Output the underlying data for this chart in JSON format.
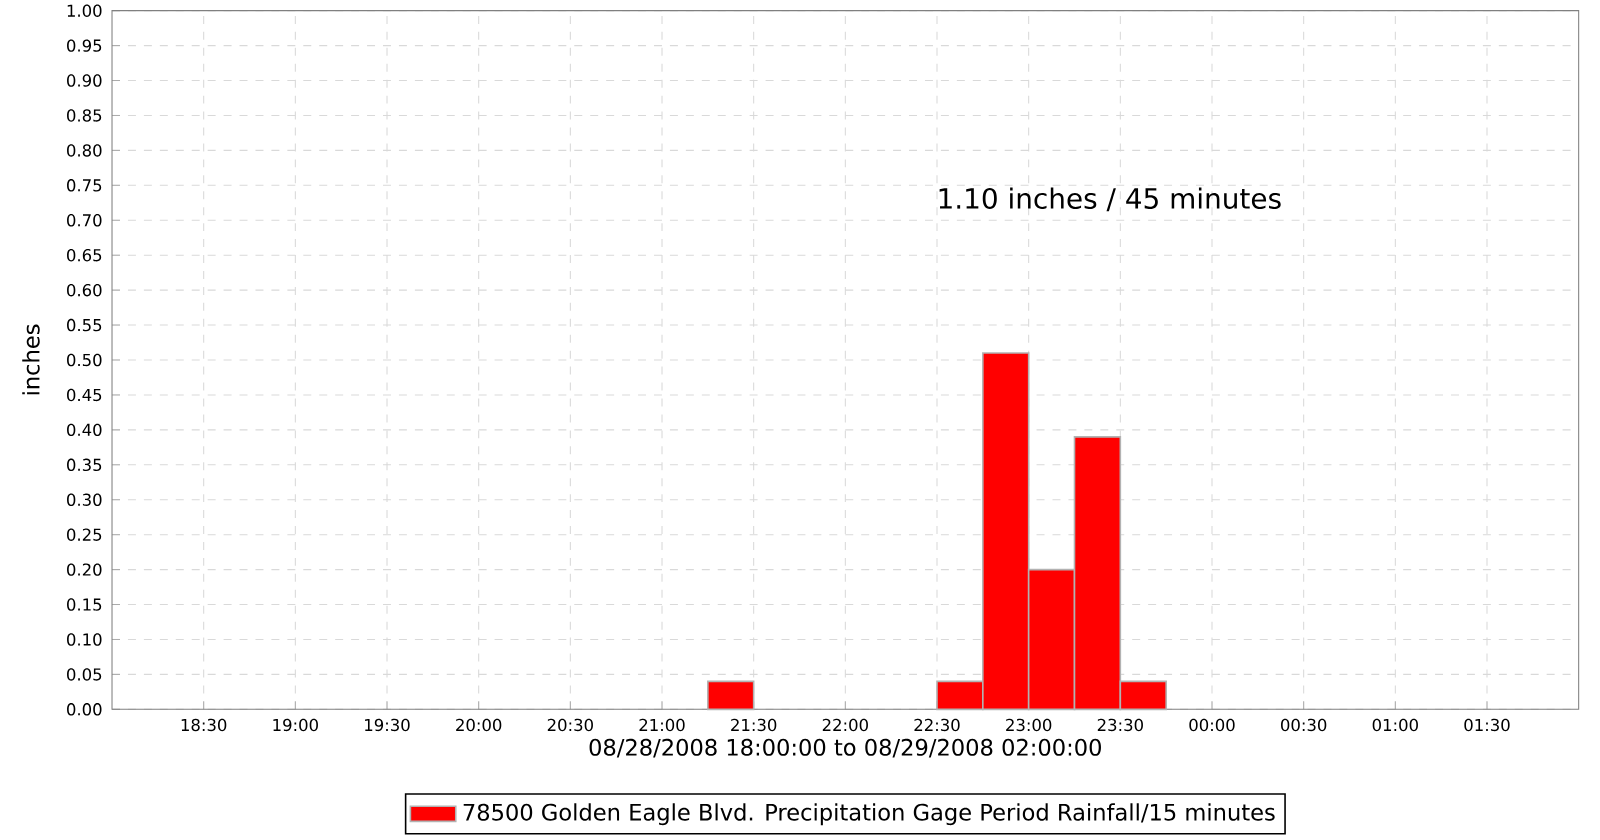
{
  "chart_data": {
    "type": "histogram",
    "xlabel": "08/28/2008 18:00:00 to 08/29/2008 02:00:00",
    "ylabel": "inches",
    "annotations": [
      "1.10 inches / 45 minutes"
    ],
    "bins": [
      "2008-08-28T18:00",
      "2008-08-28T18:15",
      "2008-08-28T18:30",
      "2008-08-28T18:45",
      "2008-08-28T19:00",
      "2008-08-28T19:15",
      "2008-08-28T19:30",
      "2008-08-28T19:45",
      "2008-08-28T20:00",
      "2008-08-28T20:15",
      "2008-08-28T20:30",
      "2008-08-28T20:45",
      "2008-08-28T21:00",
      "2008-08-28T21:15",
      "2008-08-28T21:30",
      "2008-08-28T21:45",
      "2008-08-28T22:00",
      "2008-08-28T22:15",
      "2008-08-28T22:30",
      "2008-08-28T22:45",
      "2008-08-28T23:00",
      "2008-08-28T23:15",
      "2008-08-28T23:30",
      "2008-08-28T23:45",
      "2008-08-29T00:00",
      "2008-08-29T00:15",
      "2008-08-29T00:30",
      "2008-08-29T00:45",
      "2008-08-29T01:00",
      "2008-08-29T01:15",
      "2008-08-29T01:30",
      "2008-08-29T01:45",
      "2008-08-29T02:00"
    ],
    "series": [
      {
        "name": "78500 Golden Eagle Blvd. Precipitation Gage Period Rainfall/15 minutes",
        "color": "#ff0000",
        "values": [
          0,
          0,
          0,
          0,
          0,
          0,
          0,
          0,
          0,
          0,
          0,
          0,
          0,
          0.04,
          0,
          0,
          0,
          0,
          0.04,
          0.51,
          0.2,
          0.39,
          0.04,
          0,
          0,
          0,
          0,
          0,
          0,
          0,
          0,
          0
        ]
      }
    ],
    "xlim": [
      "2008-08-28T18:00",
      "2008-08-29T02:00"
    ],
    "xticks": [
      {
        "value": "2008-08-28T18:30",
        "label": "18:30"
      },
      {
        "value": "2008-08-28T19:00",
        "label": "19:00"
      },
      {
        "value": "2008-08-28T19:30",
        "label": "19:30"
      },
      {
        "value": "2008-08-28T20:00",
        "label": "20:00"
      },
      {
        "value": "2008-08-28T20:30",
        "label": "20:30"
      },
      {
        "value": "2008-08-28T21:00",
        "label": "21:00"
      },
      {
        "value": "2008-08-28T21:30",
        "label": "21:30"
      },
      {
        "value": "2008-08-28T22:00",
        "label": "22:00"
      },
      {
        "value": "2008-08-28T22:30",
        "label": "22:30"
      },
      {
        "value": "2008-08-28T23:00",
        "label": "23:00"
      },
      {
        "value": "2008-08-28T23:30",
        "label": "23:30"
      },
      {
        "value": "2008-08-29T00:00",
        "label": "00:00"
      },
      {
        "value": "2008-08-29T00:30",
        "label": "00:30"
      },
      {
        "value": "2008-08-29T01:00",
        "label": "01:00"
      },
      {
        "value": "2008-08-29T01:30",
        "label": "01:30"
      }
    ],
    "ylim": [
      0,
      1
    ],
    "yticks": [
      {
        "value": 0,
        "label": "0.00"
      },
      {
        "value": 0.05,
        "label": "0.05"
      },
      {
        "value": 0.1,
        "label": "0.10"
      },
      {
        "value": 0.15,
        "label": "0.15"
      },
      {
        "value": 0.2,
        "label": "0.20"
      },
      {
        "value": 0.25,
        "label": "0.25"
      },
      {
        "value": 0.3,
        "label": "0.30"
      },
      {
        "value": 0.35,
        "label": "0.35"
      },
      {
        "value": 0.4,
        "label": "0.40"
      },
      {
        "value": 0.45,
        "label": "0.45"
      },
      {
        "value": 0.5,
        "label": "0.50"
      },
      {
        "value": 0.55,
        "label": "0.55"
      },
      {
        "value": 0.6,
        "label": "0.60"
      },
      {
        "value": 0.65,
        "label": "0.65"
      },
      {
        "value": 0.7,
        "label": "0.70"
      },
      {
        "value": 0.75,
        "label": "0.75"
      },
      {
        "value": 0.8,
        "label": "0.80"
      },
      {
        "value": 0.85,
        "label": "0.85"
      },
      {
        "value": 0.9,
        "label": "0.90"
      },
      {
        "value": 0.95,
        "label": "0.95"
      },
      {
        "value": 1,
        "label": "1.00"
      }
    ],
    "grid": true,
    "legend": "bottom"
  }
}
